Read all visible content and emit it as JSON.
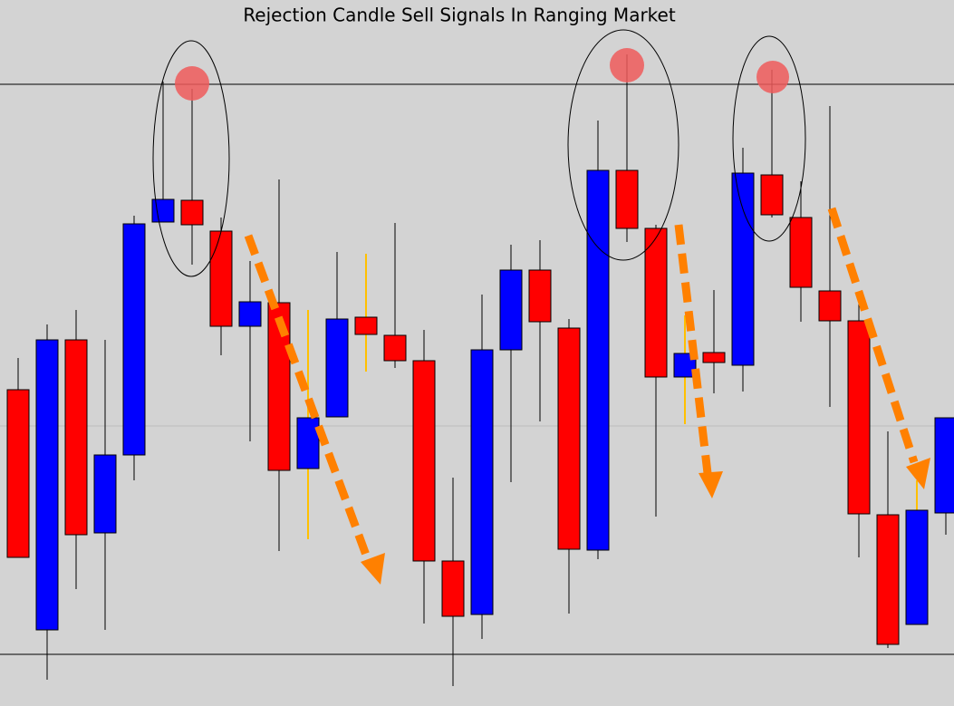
{
  "chart_data": {
    "type": "candlestick",
    "title": "Rejection Candle Sell Signals In Ranging Market",
    "ylim": [
      21,
      800
    ],
    "up_color": "#0000ff",
    "down_color": "#ff0000",
    "reference_lines": [
      707,
      78
    ],
    "mid_line": 330,
    "open": [
      370,
      105,
      425,
      212,
      298,
      555,
      579,
      545,
      440,
      466,
      283,
      340,
      450,
      430,
      402,
      181,
      122,
      414,
      502,
      438,
      193,
      612,
      548,
      384,
      411,
      397,
      607,
      560,
      479,
      446,
      232,
      111,
      234
    ],
    "high": [
      405,
      442,
      458,
      425,
      562,
      710,
      702,
      560,
      512,
      602,
      458,
      522,
      520,
      554,
      436,
      273,
      475,
      530,
      535,
      448,
      667,
      740,
      552,
      452,
      480,
      637,
      723,
      600,
      683,
      467,
      324,
      270,
      339
    ],
    "low": [
      185,
      50,
      150,
      105,
      270,
      555,
      508,
      408,
      313,
      192,
      205,
      340,
      390,
      394,
      112,
      43,
      95,
      268,
      335,
      123,
      183,
      533,
      230,
      332,
      366,
      368,
      560,
      445,
      351,
      185,
      85,
      111,
      210
    ],
    "close": [
      185,
      425,
      210,
      298,
      553,
      580,
      552,
      440,
      467,
      281,
      339,
      448,
      431,
      402,
      181,
      120,
      414,
      502,
      445,
      194,
      612,
      548,
      384,
      410,
      400,
      609,
      563,
      483,
      446,
      233,
      89,
      237,
      339
    ],
    "wick_colors": [
      "#000",
      "#000",
      "#000",
      "#000",
      "#000",
      "#000",
      "#000",
      "#000",
      "#000",
      "#000",
      "#ffc000",
      "#000",
      "#ffc000",
      "#000",
      "#000",
      "#000",
      "#000",
      "#000",
      "#000",
      "#000",
      "#000",
      "#000",
      "#000",
      "#ffc000",
      "#000",
      "#000",
      "#000",
      "#000",
      "#000",
      "#000",
      "#000",
      "#ffc000",
      "#000"
    ]
  }
}
